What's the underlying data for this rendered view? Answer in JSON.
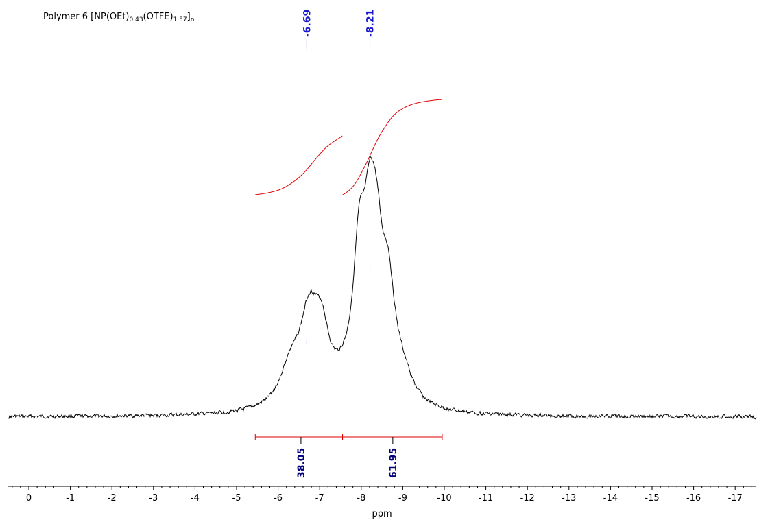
{
  "title": {
    "prefix": "Polymer 6  [NP(OEt)",
    "sub1": "0.43",
    "mid": "(OTFE)",
    "sub2": "1.57",
    "close": "]",
    "sub3": "n"
  },
  "chart_data": {
    "type": "line",
    "xlabel": "ppm",
    "xlim": [
      0.45,
      -17.45
    ],
    "x_ticks": [
      "0",
      "-1",
      "-2",
      "-3",
      "-4",
      "-5",
      "-6",
      "-7",
      "-8",
      "-9",
      "-10",
      "-11",
      "-12",
      "-13",
      "-14",
      "-15",
      "-16",
      "-17"
    ],
    "peaks": [
      {
        "label": "-6.69",
        "x": -6.69
      },
      {
        "label": "-8.21",
        "x": -8.21
      }
    ],
    "spectrum_components": [
      {
        "center": -6.3,
        "width": 0.32,
        "height": 0.18
      },
      {
        "center": -6.75,
        "width": 0.28,
        "height": 0.42
      },
      {
        "center": -7.05,
        "width": 0.22,
        "height": 0.28
      },
      {
        "center": -7.55,
        "width": 0.3,
        "height": 0.06
      },
      {
        "center": -7.95,
        "width": 0.18,
        "height": 0.62
      },
      {
        "center": -8.21,
        "width": 0.2,
        "height": 0.72
      },
      {
        "center": -8.38,
        "width": 0.18,
        "height": 0.45
      },
      {
        "center": -8.65,
        "width": 0.2,
        "height": 0.48
      },
      {
        "center": -9.0,
        "width": 0.3,
        "height": 0.12
      }
    ],
    "integrals": [
      {
        "value": "38.05",
        "from": -5.45,
        "to": -7.55
      },
      {
        "value": "61.95",
        "from": -7.55,
        "to": -9.95
      }
    ],
    "colors": {
      "spectrum": "#000000",
      "integral": "#e00000",
      "peak_label": "#1a1acc",
      "integral_label": "#00007a"
    }
  }
}
